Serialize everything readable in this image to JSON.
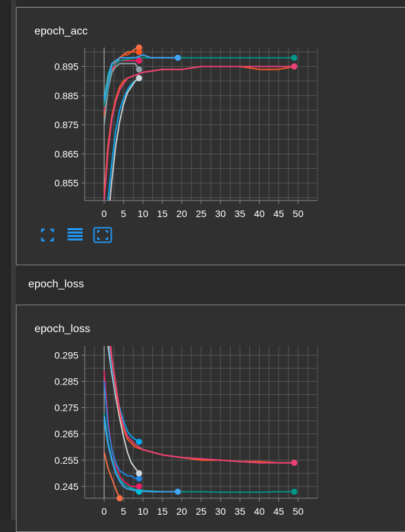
{
  "colors": {
    "background": "#303030",
    "grid": "#555555",
    "axis": "#888888",
    "accent_blue": "#2196f3"
  },
  "section": {
    "title": "epoch_loss"
  },
  "toolbar": {
    "icons": [
      "fullscreen-icon",
      "data-table-icon",
      "fit-domain-icon"
    ]
  },
  "chart_data": [
    {
      "type": "line",
      "title": "epoch_acc",
      "xlim": [
        -5,
        55
      ],
      "ylim": [
        0.849,
        0.9015
      ],
      "xticks": [
        0,
        5,
        10,
        15,
        20,
        25,
        30,
        35,
        40,
        45,
        50
      ],
      "yticks": [
        0.855,
        0.865,
        0.875,
        0.885,
        0.895
      ],
      "ytick_labels": [
        "0.855",
        "0.865",
        "0.875",
        "0.885",
        "0.895"
      ],
      "grid": true,
      "series": [
        {
          "color": "#ff7043",
          "x": [
            0,
            1,
            2,
            3,
            4,
            5,
            6,
            7,
            8,
            9
          ],
          "y": [
            0.878,
            0.888,
            0.893,
            0.896,
            0.898,
            0.899,
            0.9,
            0.9,
            0.901,
            0.9015
          ]
        },
        {
          "color": "#ff5722",
          "x": [
            0,
            1,
            2,
            3,
            4,
            5,
            6,
            7,
            8,
            9
          ],
          "y": [
            0.878,
            0.888,
            0.894,
            0.897,
            0.898,
            0.899,
            0.899,
            0.9,
            0.9,
            0.9
          ]
        },
        {
          "color": "#00bcd4",
          "x": [
            0,
            1,
            2,
            3,
            4,
            5,
            6,
            7,
            8,
            9
          ],
          "y": [
            0.884,
            0.892,
            0.896,
            0.897,
            0.897,
            0.897,
            0.897,
            0.897,
            0.897,
            0.897
          ]
        },
        {
          "color": "#4caf50",
          "x": [
            0,
            1,
            2,
            3,
            4,
            5,
            6,
            7,
            8,
            9
          ],
          "y": [
            0.882,
            0.891,
            0.895,
            0.896,
            0.897,
            0.897,
            0.897,
            0.897,
            0.897,
            0.897
          ]
        },
        {
          "color": "#e91e63",
          "x": [
            0,
            1,
            2,
            3,
            4,
            5,
            6,
            7,
            8,
            9
          ],
          "y": [
            0.88,
            0.89,
            0.894,
            0.896,
            0.897,
            0.897,
            0.897,
            0.897,
            0.897,
            0.897
          ]
        },
        {
          "color": "#90a4ae",
          "x": [
            0,
            1,
            2,
            3,
            4,
            5,
            6,
            7,
            8,
            9
          ],
          "y": [
            0.875,
            0.887,
            0.893,
            0.895,
            0.896,
            0.896,
            0.896,
            0.896,
            0.896,
            0.894
          ]
        },
        {
          "color": "#009688",
          "x": [
            0,
            2,
            4,
            6,
            8,
            10,
            15,
            20,
            25,
            30,
            35,
            40,
            45,
            49
          ],
          "y": [
            0.881,
            0.895,
            0.897,
            0.8975,
            0.898,
            0.898,
            0.898,
            0.898,
            0.898,
            0.898,
            0.898,
            0.898,
            0.898,
            0.898
          ]
        },
        {
          "color": "#42a5f5",
          "x": [
            0,
            2,
            4,
            6,
            8,
            10,
            12,
            15,
            17,
            19
          ],
          "y": [
            0.883,
            0.896,
            0.898,
            0.898,
            0.898,
            0.899,
            0.898,
            0.898,
            0.898,
            0.898
          ]
        },
        {
          "color": "#ff5722",
          "x": [
            0,
            1,
            2,
            3,
            4,
            5,
            6,
            8,
            10,
            15,
            20,
            25,
            30,
            35,
            40,
            45,
            49
          ],
          "y": [
            0.851,
            0.868,
            0.878,
            0.884,
            0.888,
            0.89,
            0.891,
            0.892,
            0.893,
            0.894,
            0.894,
            0.895,
            0.895,
            0.895,
            0.894,
            0.894,
            0.895
          ]
        },
        {
          "color": "#ec407a",
          "x": [
            0,
            1,
            2,
            3,
            4,
            5,
            6,
            8,
            10,
            15,
            20,
            25,
            30,
            35,
            40,
            45,
            49
          ],
          "y": [
            0.849,
            0.866,
            0.877,
            0.883,
            0.887,
            0.889,
            0.891,
            0.892,
            0.893,
            0.894,
            0.894,
            0.895,
            0.895,
            0.895,
            0.895,
            0.895,
            0.895
          ]
        },
        {
          "color": "#03a9f4",
          "x": [
            1,
            2,
            3,
            4,
            5,
            6,
            7,
            8,
            9
          ],
          "y": [
            0.849,
            0.862,
            0.873,
            0.88,
            0.884,
            0.887,
            0.889,
            0.89,
            0.891
          ]
        },
        {
          "color": "#cfd8dc",
          "x": [
            1.5,
            2,
            3,
            4,
            5,
            6,
            7,
            8,
            9
          ],
          "y": [
            0.849,
            0.856,
            0.868,
            0.876,
            0.882,
            0.886,
            0.888,
            0.89,
            0.891
          ]
        }
      ]
    },
    {
      "type": "line",
      "title": "epoch_loss",
      "xlim": [
        -5,
        55
      ],
      "ylim": [
        0.2405,
        0.2985
      ],
      "xticks": [
        0,
        5,
        10,
        15,
        20,
        25,
        30,
        35,
        40,
        45,
        50
      ],
      "yticks": [
        0.245,
        0.255,
        0.265,
        0.275,
        0.285,
        0.295
      ],
      "ytick_labels": [
        "0.245",
        "0.255",
        "0.265",
        "0.275",
        "0.285",
        "0.295"
      ],
      "grid": true,
      "series": [
        {
          "color": "#ff7043",
          "x": [
            0,
            1,
            2,
            3,
            4
          ],
          "y": [
            0.258,
            0.252,
            0.248,
            0.244,
            0.2405
          ]
        },
        {
          "color": "#00bcd4",
          "x": [
            0,
            1,
            2,
            3,
            4,
            5,
            6,
            7,
            8,
            9
          ],
          "y": [
            0.27,
            0.261,
            0.255,
            0.251,
            0.248,
            0.246,
            0.245,
            0.244,
            0.2435,
            0.243
          ]
        },
        {
          "color": "#009688",
          "x": [
            0,
            1,
            2,
            3,
            4,
            5,
            6,
            8,
            10,
            15,
            20,
            25,
            30,
            35,
            40,
            45,
            49
          ],
          "y": [
            0.273,
            0.262,
            0.256,
            0.251,
            0.248,
            0.246,
            0.245,
            0.244,
            0.2435,
            0.243,
            0.243,
            0.243,
            0.2428,
            0.2428,
            0.2428,
            0.243,
            0.243
          ]
        },
        {
          "color": "#42a5f5",
          "x": [
            0,
            1,
            2,
            3,
            4,
            5,
            6,
            8,
            10,
            12,
            15,
            17,
            19
          ],
          "y": [
            0.272,
            0.261,
            0.255,
            0.25,
            0.247,
            0.245,
            0.244,
            0.2435,
            0.2432,
            0.243,
            0.243,
            0.243,
            0.243
          ]
        },
        {
          "color": "#e91e63",
          "x": [
            0,
            1,
            2,
            3,
            4,
            5,
            6,
            7,
            8,
            9
          ],
          "y": [
            0.289,
            0.27,
            0.259,
            0.253,
            0.249,
            0.247,
            0.246,
            0.245,
            0.245,
            0.245
          ]
        },
        {
          "color": "#1e88e5",
          "x": [
            0,
            1,
            2,
            3,
            4,
            5,
            6,
            7,
            8,
            9
          ],
          "y": [
            0.285,
            0.268,
            0.259,
            0.254,
            0.251,
            0.25,
            0.249,
            0.249,
            0.248,
            0.248
          ]
        },
        {
          "color": "#cfd8dc",
          "x": [
            1,
            2,
            3,
            4,
            5,
            6,
            7,
            8,
            9
          ],
          "y": [
            0.2985,
            0.288,
            0.279,
            0.271,
            0.264,
            0.258,
            0.254,
            0.252,
            0.25
          ]
        },
        {
          "color": "#03a9f4",
          "x": [
            1.3,
            2,
            3,
            4,
            5,
            6,
            7,
            8,
            9
          ],
          "y": [
            0.2985,
            0.29,
            0.281,
            0.275,
            0.27,
            0.266,
            0.264,
            0.263,
            0.262
          ]
        },
        {
          "color": "#ff5722",
          "x": [
            1.5,
            2,
            3,
            4,
            5,
            6,
            8,
            10,
            15,
            20,
            25,
            30,
            35,
            40,
            45,
            49
          ],
          "y": [
            0.2985,
            0.293,
            0.282,
            0.273,
            0.267,
            0.263,
            0.26,
            0.259,
            0.257,
            0.256,
            0.255,
            0.255,
            0.2545,
            0.2545,
            0.254,
            0.254
          ]
        },
        {
          "color": "#ec407a",
          "x": [
            1.7,
            2,
            3,
            4,
            5,
            6,
            8,
            10,
            15,
            20,
            25,
            30,
            35,
            40,
            45,
            49
          ],
          "y": [
            0.2985,
            0.294,
            0.284,
            0.274,
            0.268,
            0.264,
            0.261,
            0.259,
            0.257,
            0.256,
            0.2555,
            0.255,
            0.2545,
            0.254,
            0.254,
            0.254
          ]
        }
      ]
    }
  ]
}
